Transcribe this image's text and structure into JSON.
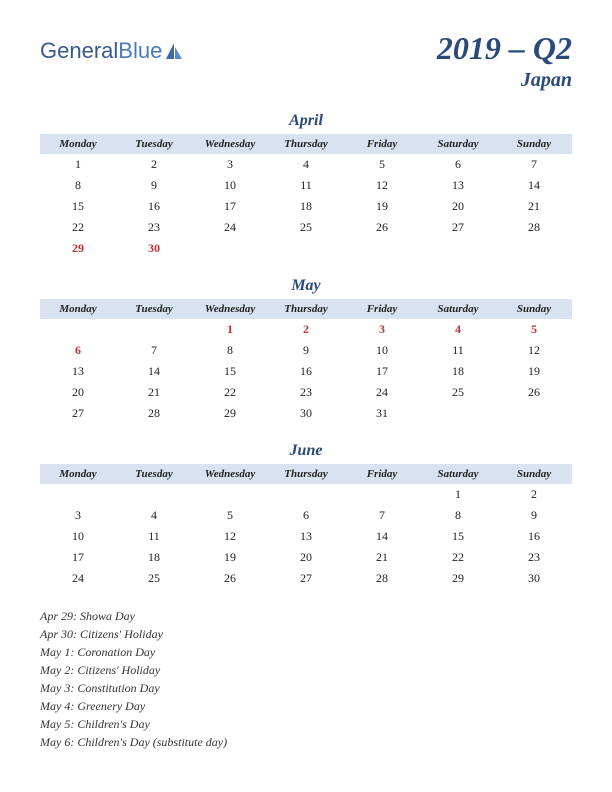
{
  "logo": {
    "text_general": "General",
    "text_blue": "Blue"
  },
  "title": {
    "main": "2019 – Q2",
    "sub": "Japan"
  },
  "colors": {
    "brand": "#2a4a7a",
    "header_bg": "#d8e2f0",
    "holiday": "#c03030",
    "text": "#222222",
    "background": "#ffffff"
  },
  "weekdays": [
    "Monday",
    "Tuesday",
    "Wednesday",
    "Thursday",
    "Friday",
    "Saturday",
    "Sunday"
  ],
  "months": [
    {
      "name": "April",
      "weeks": [
        [
          {
            "d": "1"
          },
          {
            "d": "2"
          },
          {
            "d": "3"
          },
          {
            "d": "4"
          },
          {
            "d": "5"
          },
          {
            "d": "6"
          },
          {
            "d": "7"
          }
        ],
        [
          {
            "d": "8"
          },
          {
            "d": "9"
          },
          {
            "d": "10"
          },
          {
            "d": "11"
          },
          {
            "d": "12"
          },
          {
            "d": "13"
          },
          {
            "d": "14"
          }
        ],
        [
          {
            "d": "15"
          },
          {
            "d": "16"
          },
          {
            "d": "17"
          },
          {
            "d": "18"
          },
          {
            "d": "19"
          },
          {
            "d": "20"
          },
          {
            "d": "21"
          }
        ],
        [
          {
            "d": "22"
          },
          {
            "d": "23"
          },
          {
            "d": "24"
          },
          {
            "d": "25"
          },
          {
            "d": "26"
          },
          {
            "d": "27"
          },
          {
            "d": "28"
          }
        ],
        [
          {
            "d": "29",
            "h": true
          },
          {
            "d": "30",
            "h": true
          },
          {
            "d": ""
          },
          {
            "d": ""
          },
          {
            "d": ""
          },
          {
            "d": ""
          },
          {
            "d": ""
          }
        ]
      ]
    },
    {
      "name": "May",
      "weeks": [
        [
          {
            "d": ""
          },
          {
            "d": ""
          },
          {
            "d": "1",
            "h": true
          },
          {
            "d": "2",
            "h": true
          },
          {
            "d": "3",
            "h": true
          },
          {
            "d": "4",
            "h": true
          },
          {
            "d": "5",
            "h": true
          }
        ],
        [
          {
            "d": "6",
            "h": true
          },
          {
            "d": "7"
          },
          {
            "d": "8"
          },
          {
            "d": "9"
          },
          {
            "d": "10"
          },
          {
            "d": "11"
          },
          {
            "d": "12"
          }
        ],
        [
          {
            "d": "13"
          },
          {
            "d": "14"
          },
          {
            "d": "15"
          },
          {
            "d": "16"
          },
          {
            "d": "17"
          },
          {
            "d": "18"
          },
          {
            "d": "19"
          }
        ],
        [
          {
            "d": "20"
          },
          {
            "d": "21"
          },
          {
            "d": "22"
          },
          {
            "d": "23"
          },
          {
            "d": "24"
          },
          {
            "d": "25"
          },
          {
            "d": "26"
          }
        ],
        [
          {
            "d": "27"
          },
          {
            "d": "28"
          },
          {
            "d": "29"
          },
          {
            "d": "30"
          },
          {
            "d": "31"
          },
          {
            "d": ""
          },
          {
            "d": ""
          }
        ]
      ]
    },
    {
      "name": "June",
      "weeks": [
        [
          {
            "d": ""
          },
          {
            "d": ""
          },
          {
            "d": ""
          },
          {
            "d": ""
          },
          {
            "d": ""
          },
          {
            "d": "1"
          },
          {
            "d": "2"
          }
        ],
        [
          {
            "d": "3"
          },
          {
            "d": "4"
          },
          {
            "d": "5"
          },
          {
            "d": "6"
          },
          {
            "d": "7"
          },
          {
            "d": "8"
          },
          {
            "d": "9"
          }
        ],
        [
          {
            "d": "10"
          },
          {
            "d": "11"
          },
          {
            "d": "12"
          },
          {
            "d": "13"
          },
          {
            "d": "14"
          },
          {
            "d": "15"
          },
          {
            "d": "16"
          }
        ],
        [
          {
            "d": "17"
          },
          {
            "d": "18"
          },
          {
            "d": "19"
          },
          {
            "d": "20"
          },
          {
            "d": "21"
          },
          {
            "d": "22"
          },
          {
            "d": "23"
          }
        ],
        [
          {
            "d": "24"
          },
          {
            "d": "25"
          },
          {
            "d": "26"
          },
          {
            "d": "27"
          },
          {
            "d": "28"
          },
          {
            "d": "29"
          },
          {
            "d": "30"
          }
        ]
      ]
    }
  ],
  "holidays": [
    "Apr 29: Showa Day",
    "Apr 30: Citizens' Holiday",
    "May 1: Coronation Day",
    "May 2: Citizens' Holiday",
    "May 3: Constitution Day",
    "May 4: Greenery Day",
    "May 5: Children's Day",
    "May 6: Children's Day (substitute day)"
  ]
}
